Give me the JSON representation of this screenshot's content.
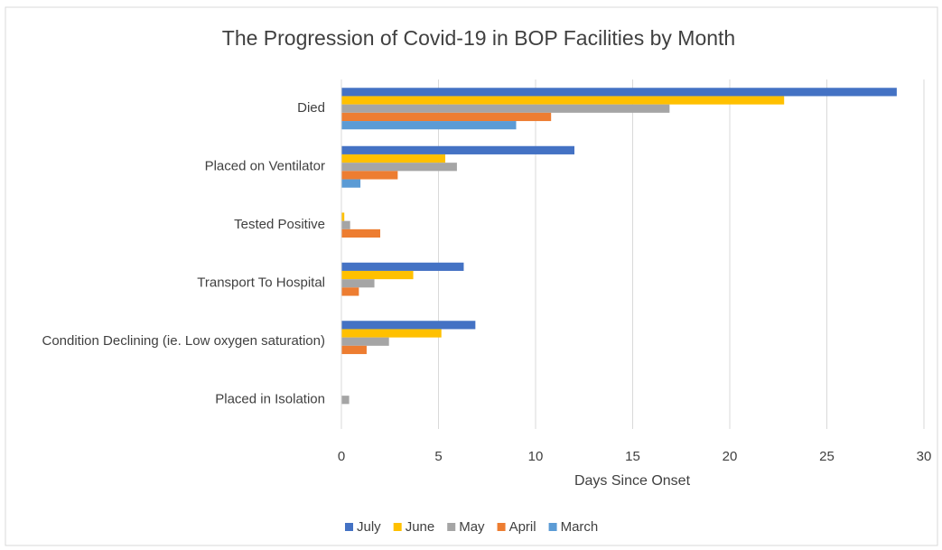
{
  "chart_data": {
    "type": "barh",
    "title": "The Progression of Covid-19 in BOP Facilities  by Month",
    "xlabel": "Days Since Onset",
    "categories": [
      "Died",
      "Placed on Ventilator",
      "Tested Positive",
      "Transport To Hospital",
      "Condition Declining (ie. Low oxygen saturation)",
      "Placed in Isolation"
    ],
    "series": [
      {
        "name": "July",
        "color": "#4472c4",
        "values": [
          28.6,
          12,
          0,
          6.3,
          6.9,
          0
        ]
      },
      {
        "name": "June",
        "color": "#ffc000",
        "values": [
          22.8,
          5.35,
          0.15,
          3.7,
          5.15,
          0
        ]
      },
      {
        "name": "May",
        "color": "#a5a5a5",
        "values": [
          16.9,
          5.95,
          0.45,
          1.7,
          2.45,
          0.4
        ]
      },
      {
        "name": "April",
        "color": "#ed7d31",
        "values": [
          10.8,
          2.9,
          2.0,
          0.9,
          1.3,
          0
        ]
      },
      {
        "name": "March",
        "color": "#5b9bd5",
        "values": [
          9.0,
          0.98,
          0,
          0,
          0,
          0
        ]
      }
    ],
    "xlim": [
      0,
      30
    ],
    "xticks": [
      0,
      5,
      10,
      15,
      20,
      25,
      30
    ],
    "grid": true,
    "legend": "bottom"
  }
}
